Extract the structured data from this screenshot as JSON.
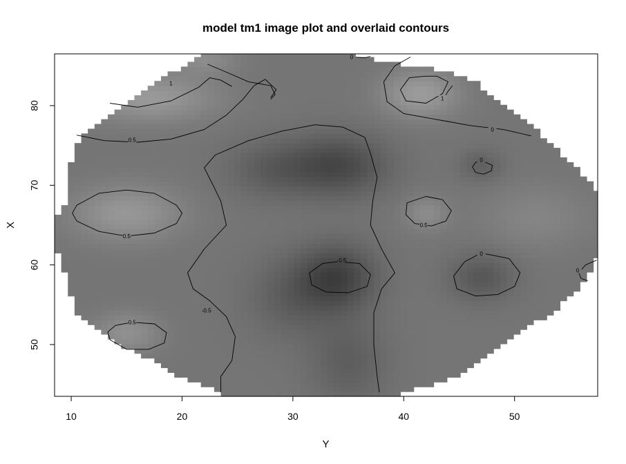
{
  "chart_data": {
    "type": "heatmap",
    "title": "model tm1 image plot and overlaid contours",
    "xlabel": "Y",
    "ylabel": "X",
    "xlim": [
      8.5,
      57.5
    ],
    "ylim": [
      43.5,
      86.5
    ],
    "x_ticks": [
      10,
      20,
      30,
      40,
      50
    ],
    "y_ticks": [
      50,
      60,
      70,
      80
    ],
    "color_scale": "grayscale",
    "colors": {
      "low": "#3a3a3a",
      "mid": "#6e6e6e",
      "high": "#9a9a9a",
      "axis": "#000000",
      "background": "#ffffff"
    },
    "region_rows": [
      [
        44,
        23.5,
        39.5
      ],
      [
        45,
        21.5,
        43.0
      ],
      [
        46,
        19.5,
        45.0
      ],
      [
        48,
        17.5,
        47.0
      ],
      [
        50,
        14.5,
        49.0
      ],
      [
        52,
        12.0,
        51.0
      ],
      [
        54,
        10.5,
        53.5
      ],
      [
        56,
        10.0,
        55.0
      ],
      [
        58,
        10.0,
        56.5
      ],
      [
        59.5,
        9.0,
        57.0
      ],
      [
        61,
        9.0,
        57.5
      ],
      [
        63,
        8.5,
        57.5
      ],
      [
        66,
        8.5,
        57.5
      ],
      [
        69,
        10.0,
        57.5
      ],
      [
        71,
        10.0,
        56.5
      ],
      [
        73,
        10.0,
        55.0
      ],
      [
        75,
        10.5,
        53.5
      ],
      [
        77,
        11.5,
        52.0
      ],
      [
        79,
        14.0,
        50.0
      ],
      [
        81,
        16.0,
        48.0
      ],
      [
        83,
        17.5,
        46.5
      ],
      [
        84.5,
        19.5,
        43.5
      ],
      [
        85.5,
        21.0,
        38.0
      ],
      [
        86.5,
        22.0,
        35.0
      ]
    ],
    "surface": {
      "base": 0.3,
      "components": [
        [
          34,
          72.5,
          -1.0,
          4.5,
          3.8
        ],
        [
          28,
          72.0,
          -0.5,
          4.0,
          3.5
        ],
        [
          34,
          58.5,
          -1.1,
          3.5,
          4.0
        ],
        [
          30,
          56.0,
          -0.5,
          4.0,
          5.0
        ],
        [
          35,
          48.0,
          -0.5,
          3.5,
          5.5
        ],
        [
          47,
          72.5,
          -0.45,
          2.0,
          2.0
        ],
        [
          47,
          58.5,
          -0.65,
          3.0,
          3.0
        ],
        [
          15,
          66.5,
          0.75,
          5.0,
          3.5
        ],
        [
          15,
          51.5,
          0.6,
          3.0,
          2.5
        ],
        [
          42,
          66.5,
          0.5,
          2.0,
          2.2
        ],
        [
          41.5,
          81.5,
          0.85,
          3.5,
          3.0
        ],
        [
          17,
          81.0,
          0.8,
          6.0,
          3.0
        ],
        [
          52,
          66.0,
          0.35,
          5.0,
          4.0
        ],
        [
          22,
          86.0,
          0.5,
          3.0,
          2.0
        ]
      ]
    },
    "contours": [
      {
        "level": "1",
        "points": [
          [
            13.5,
            80.3
          ],
          [
            16,
            79.8
          ],
          [
            19,
            80.6
          ],
          [
            21.5,
            82.3
          ],
          [
            22.5,
            83.5
          ],
          [
            23.5,
            83.2
          ],
          [
            24.5,
            82.4
          ]
        ],
        "label_at": [
          19.0,
          82.8
        ]
      },
      {
        "level": "0.5",
        "points": [
          [
            10.5,
            76.3
          ],
          [
            13,
            75.6
          ],
          [
            16,
            75.4
          ],
          [
            19,
            75.8
          ],
          [
            22,
            77.0
          ],
          [
            24,
            78.8
          ],
          [
            25.5,
            80.8
          ],
          [
            26.5,
            82.5
          ],
          [
            27.5,
            83.3
          ],
          [
            28.5,
            82.0
          ],
          [
            28.0,
            81.0
          ]
        ],
        "label_at": [
          15.5,
          75.7
        ]
      },
      {
        "level": "0",
        "points": [
          [
            22.3,
            85.2
          ],
          [
            24,
            84.2
          ],
          [
            26,
            83.0
          ],
          [
            28,
            82.5
          ],
          [
            28.4,
            81.4
          ],
          [
            28.0,
            80.8
          ]
        ],
        "label_at": null
      },
      {
        "level": "0",
        "points": [
          [
            35.5,
            86.1
          ],
          [
            36.5,
            86.0
          ],
          [
            37,
            86.2
          ]
        ],
        "label_at": [
          35.3,
          86.1
        ]
      },
      {
        "level": "-0.5",
        "points": [
          [
            37.8,
            44.0
          ],
          [
            37.6,
            46
          ],
          [
            37.3,
            50
          ],
          [
            37.3,
            54
          ],
          [
            38.0,
            57
          ],
          [
            39.2,
            59
          ],
          [
            38.0,
            62
          ],
          [
            37.0,
            65
          ],
          [
            37.2,
            68
          ],
          [
            37.6,
            71
          ],
          [
            37.0,
            74
          ],
          [
            36.5,
            76.0
          ],
          [
            34.5,
            77.3
          ],
          [
            32,
            77.6
          ],
          [
            29,
            76.8
          ],
          [
            26,
            75.6
          ],
          [
            23.0,
            73.8
          ],
          [
            22.0,
            72.2
          ],
          [
            22.8,
            70
          ],
          [
            23.5,
            68
          ],
          [
            24.0,
            65
          ],
          [
            22.0,
            62
          ],
          [
            20.5,
            59
          ],
          [
            21.0,
            57
          ],
          [
            22.5,
            55.5
          ],
          [
            24.0,
            53.5
          ],
          [
            24.8,
            51
          ],
          [
            24.5,
            48
          ],
          [
            23.5,
            46
          ],
          [
            23.5,
            44.0
          ]
        ],
        "label_at": [
          22.2,
          54.3
        ]
      },
      {
        "level": "0",
        "points": [
          [
            40.6,
            86.1
          ],
          [
            39.2,
            85.0
          ],
          [
            38.2,
            83.0
          ],
          [
            38.5,
            80.5
          ],
          [
            40,
            79.0
          ],
          [
            42,
            78.5
          ],
          [
            44,
            78.0
          ],
          [
            46,
            77.5
          ],
          [
            49,
            77.0
          ],
          [
            51.5,
            76.2
          ]
        ],
        "label_at": [
          48.0,
          77.0
        ]
      },
      {
        "level": "1",
        "points": [
          [
            42,
            83.7
          ],
          [
            40.5,
            83.5
          ],
          [
            39.7,
            82.0
          ],
          [
            40.2,
            80.6
          ],
          [
            42,
            80.3
          ],
          [
            43.5,
            81.5
          ],
          [
            44,
            83.0
          ],
          [
            43,
            83.7
          ],
          [
            42,
            83.7
          ]
        ],
        "label_at": null
      },
      {
        "level": "1",
        "points": [
          [
            43.6,
            80.9
          ],
          [
            44.0,
            81.8
          ],
          [
            44.4,
            82.5
          ]
        ],
        "label_at": [
          43.5,
          80.9
        ]
      },
      {
        "level": "0.5",
        "points": [
          [
            15,
            69.4
          ],
          [
            17.5,
            69.0
          ],
          [
            19.5,
            67.5
          ],
          [
            20.0,
            66.5
          ],
          [
            19.5,
            65.2
          ],
          [
            17.5,
            64.0
          ],
          [
            15,
            63.6
          ],
          [
            12.5,
            64.2
          ],
          [
            10.5,
            65.5
          ],
          [
            10.1,
            66.5
          ],
          [
            10.5,
            67.5
          ],
          [
            12.5,
            69.0
          ],
          [
            15,
            69.4
          ]
        ],
        "label_at": [
          15.0,
          63.6
        ]
      },
      {
        "level": "0.5",
        "points": [
          [
            15.5,
            52.8
          ],
          [
            17.5,
            52.6
          ],
          [
            18.6,
            51.5
          ],
          [
            18.4,
            50.2
          ],
          [
            17.0,
            49.4
          ],
          [
            15.0,
            49.4
          ],
          [
            13.5,
            50.6
          ],
          [
            13.3,
            51.6
          ],
          [
            14.0,
            52.4
          ],
          [
            15.5,
            52.8
          ]
        ],
        "label_at": [
          15.5,
          52.8
        ]
      },
      {
        "level": "0.5",
        "points": [
          [
            42,
            68.6
          ],
          [
            43.5,
            68.2
          ],
          [
            44.3,
            66.8
          ],
          [
            43.8,
            65.5
          ],
          [
            42.5,
            64.9
          ],
          [
            41.0,
            65.2
          ],
          [
            40.2,
            66.3
          ],
          [
            40.3,
            67.8
          ],
          [
            42,
            68.6
          ]
        ],
        "label_at": [
          41.8,
          65.0
        ]
      },
      {
        "level": "-0.5",
        "points": [
          [
            34.0,
            60.4
          ],
          [
            36.0,
            60.2
          ],
          [
            37.0,
            58.8
          ],
          [
            36.7,
            57.3
          ],
          [
            35.0,
            56.5
          ],
          [
            33.0,
            56.6
          ],
          [
            31.7,
            57.5
          ],
          [
            31.5,
            59.0
          ],
          [
            32.7,
            60.2
          ],
          [
            34.0,
            60.4
          ]
        ],
        "label_at": [
          34.4,
          60.6
        ]
      },
      {
        "level": "0",
        "points": [
          [
            47.2,
            73.0
          ],
          [
            48.0,
            72.5
          ],
          [
            47.9,
            71.8
          ],
          [
            47.2,
            71.4
          ],
          [
            46.5,
            71.6
          ],
          [
            46.2,
            72.3
          ],
          [
            46.5,
            72.9
          ],
          [
            47.2,
            73.0
          ]
        ],
        "label_at": [
          47.0,
          73.2
        ]
      },
      {
        "level": "0",
        "points": [
          [
            47.0,
            61.5
          ],
          [
            49.5,
            60.8
          ],
          [
            50.5,
            59.0
          ],
          [
            50.0,
            57.3
          ],
          [
            48.5,
            56.3
          ],
          [
            46.5,
            56.1
          ],
          [
            44.8,
            57.0
          ],
          [
            44.5,
            58.6
          ],
          [
            45.5,
            60.4
          ],
          [
            47.0,
            61.5
          ]
        ],
        "label_at": [
          47.0,
          61.4
        ]
      },
      {
        "level": "0",
        "points": [
          [
            57.4,
            60.6
          ],
          [
            56.4,
            60.0
          ],
          [
            55.8,
            59.0
          ],
          [
            56.0,
            58.3
          ],
          [
            56.6,
            58.0
          ]
        ],
        "label_at": [
          55.7,
          59.3
        ]
      }
    ]
  }
}
